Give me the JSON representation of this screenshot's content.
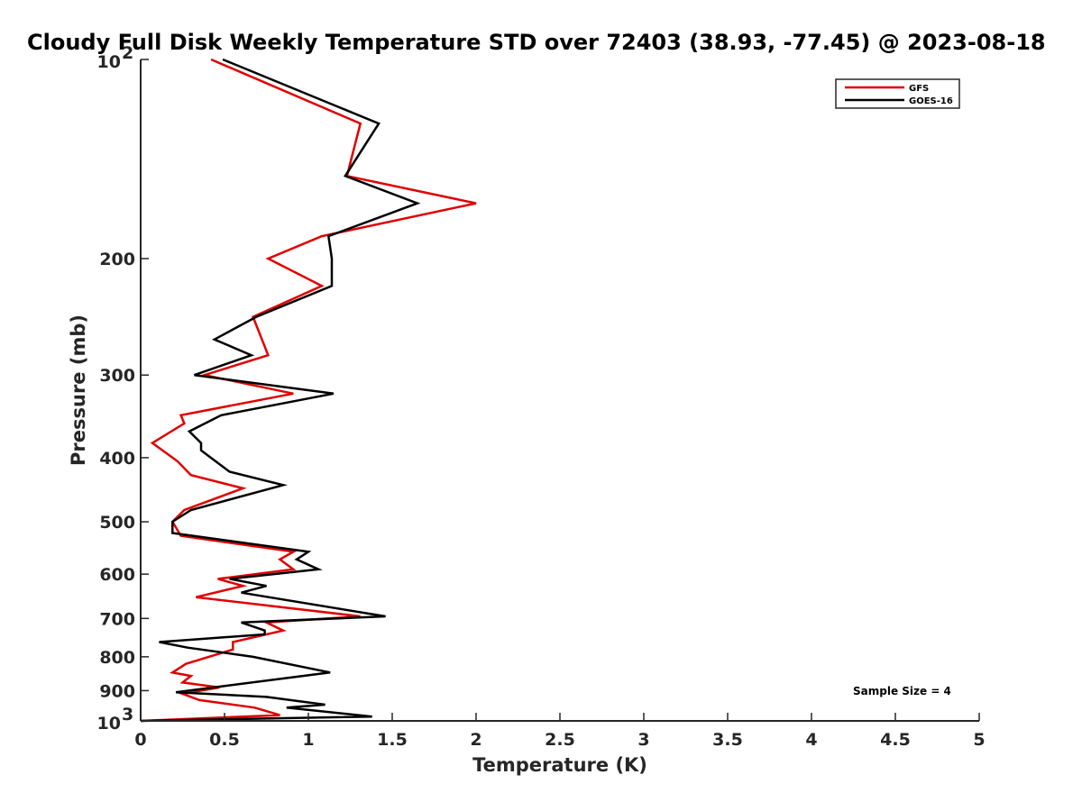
{
  "chart_data": {
    "type": "line",
    "title": "Cloudy Full Disk Weekly Temperature STD over 72403 (38.93, -77.45) @ 2023-08-18",
    "xlabel": "Temperature (K)",
    "ylabel": "Pressure (mb)",
    "xlim": [
      0,
      5
    ],
    "ylim": [
      100,
      1000
    ],
    "y_scale": "log",
    "y_reversed": true,
    "grid": false,
    "legend_position": "top-right",
    "x_ticks": [
      "0",
      "0.5",
      "1",
      "1.5",
      "2",
      "2.5",
      "3",
      "3.5",
      "4",
      "4.5",
      "5"
    ],
    "x_tick_values": [
      0,
      0.5,
      1,
      1.5,
      2,
      2.5,
      3,
      3.5,
      4,
      4.5,
      5
    ],
    "y_ticks": [
      {
        "value": 100,
        "base": "10",
        "exp": "2"
      },
      {
        "value": 200,
        "label": "200"
      },
      {
        "value": 300,
        "label": "300"
      },
      {
        "value": 400,
        "label": "400"
      },
      {
        "value": 500,
        "label": "500"
      },
      {
        "value": 600,
        "label": "600"
      },
      {
        "value": 700,
        "label": "700"
      },
      {
        "value": 800,
        "label": "800"
      },
      {
        "value": 900,
        "label": "900"
      },
      {
        "value": 1000,
        "base": "10",
        "exp": "3"
      }
    ],
    "annotation": "Sample Size = 4",
    "series": [
      {
        "name": "GFS",
        "color": "#e00000",
        "points": [
          [
            0.42,
            100
          ],
          [
            1.31,
            125
          ],
          [
            1.23,
            150
          ],
          [
            2.0,
            165
          ],
          [
            1.08,
            185
          ],
          [
            0.76,
            200
          ],
          [
            1.08,
            220
          ],
          [
            0.67,
            245
          ],
          [
            0.76,
            280
          ],
          [
            0.38,
            300
          ],
          [
            0.91,
            320
          ],
          [
            0.24,
            345
          ],
          [
            0.26,
            355
          ],
          [
            0.07,
            380
          ],
          [
            0.22,
            405
          ],
          [
            0.3,
            425
          ],
          [
            0.61,
            445
          ],
          [
            0.26,
            480
          ],
          [
            0.19,
            500
          ],
          [
            0.24,
            525
          ],
          [
            0.91,
            555
          ],
          [
            0.83,
            570
          ],
          [
            0.91,
            590
          ],
          [
            0.46,
            610
          ],
          [
            0.61,
            625
          ],
          [
            0.33,
            650
          ],
          [
            1.31,
            695
          ],
          [
            0.75,
            710
          ],
          [
            0.85,
            730
          ],
          [
            0.55,
            760
          ],
          [
            0.55,
            780
          ],
          [
            0.27,
            820
          ],
          [
            0.19,
            845
          ],
          [
            0.3,
            855
          ],
          [
            0.25,
            875
          ],
          [
            0.47,
            890
          ],
          [
            0.25,
            910
          ],
          [
            0.35,
            930
          ],
          [
            0.68,
            955
          ],
          [
            0.83,
            980
          ],
          [
            0.0,
            1000
          ]
        ]
      },
      {
        "name": "GOES-16",
        "color": "#000000",
        "points": [
          [
            0.49,
            100
          ],
          [
            1.42,
            125
          ],
          [
            1.22,
            150
          ],
          [
            1.65,
            165
          ],
          [
            1.12,
            185
          ],
          [
            1.14,
            200
          ],
          [
            1.14,
            220
          ],
          [
            0.69,
            245
          ],
          [
            0.44,
            265
          ],
          [
            0.66,
            280
          ],
          [
            0.32,
            300
          ],
          [
            1.15,
            320
          ],
          [
            0.48,
            345
          ],
          [
            0.29,
            365
          ],
          [
            0.36,
            380
          ],
          [
            0.36,
            390
          ],
          [
            0.53,
            420
          ],
          [
            0.85,
            440
          ],
          [
            0.3,
            480
          ],
          [
            0.19,
            500
          ],
          [
            0.19,
            520
          ],
          [
            1.0,
            555
          ],
          [
            0.93,
            570
          ],
          [
            1.06,
            590
          ],
          [
            0.53,
            610
          ],
          [
            0.75,
            625
          ],
          [
            0.6,
            640
          ],
          [
            1.46,
            695
          ],
          [
            0.6,
            710
          ],
          [
            0.74,
            730
          ],
          [
            0.74,
            740
          ],
          [
            0.11,
            760
          ],
          [
            0.28,
            775
          ],
          [
            0.67,
            800
          ],
          [
            1.13,
            845
          ],
          [
            0.21,
            905
          ],
          [
            0.75,
            920
          ],
          [
            1.1,
            945
          ],
          [
            0.87,
            955
          ],
          [
            1.38,
            985
          ],
          [
            0.0,
            1000
          ]
        ]
      }
    ]
  }
}
